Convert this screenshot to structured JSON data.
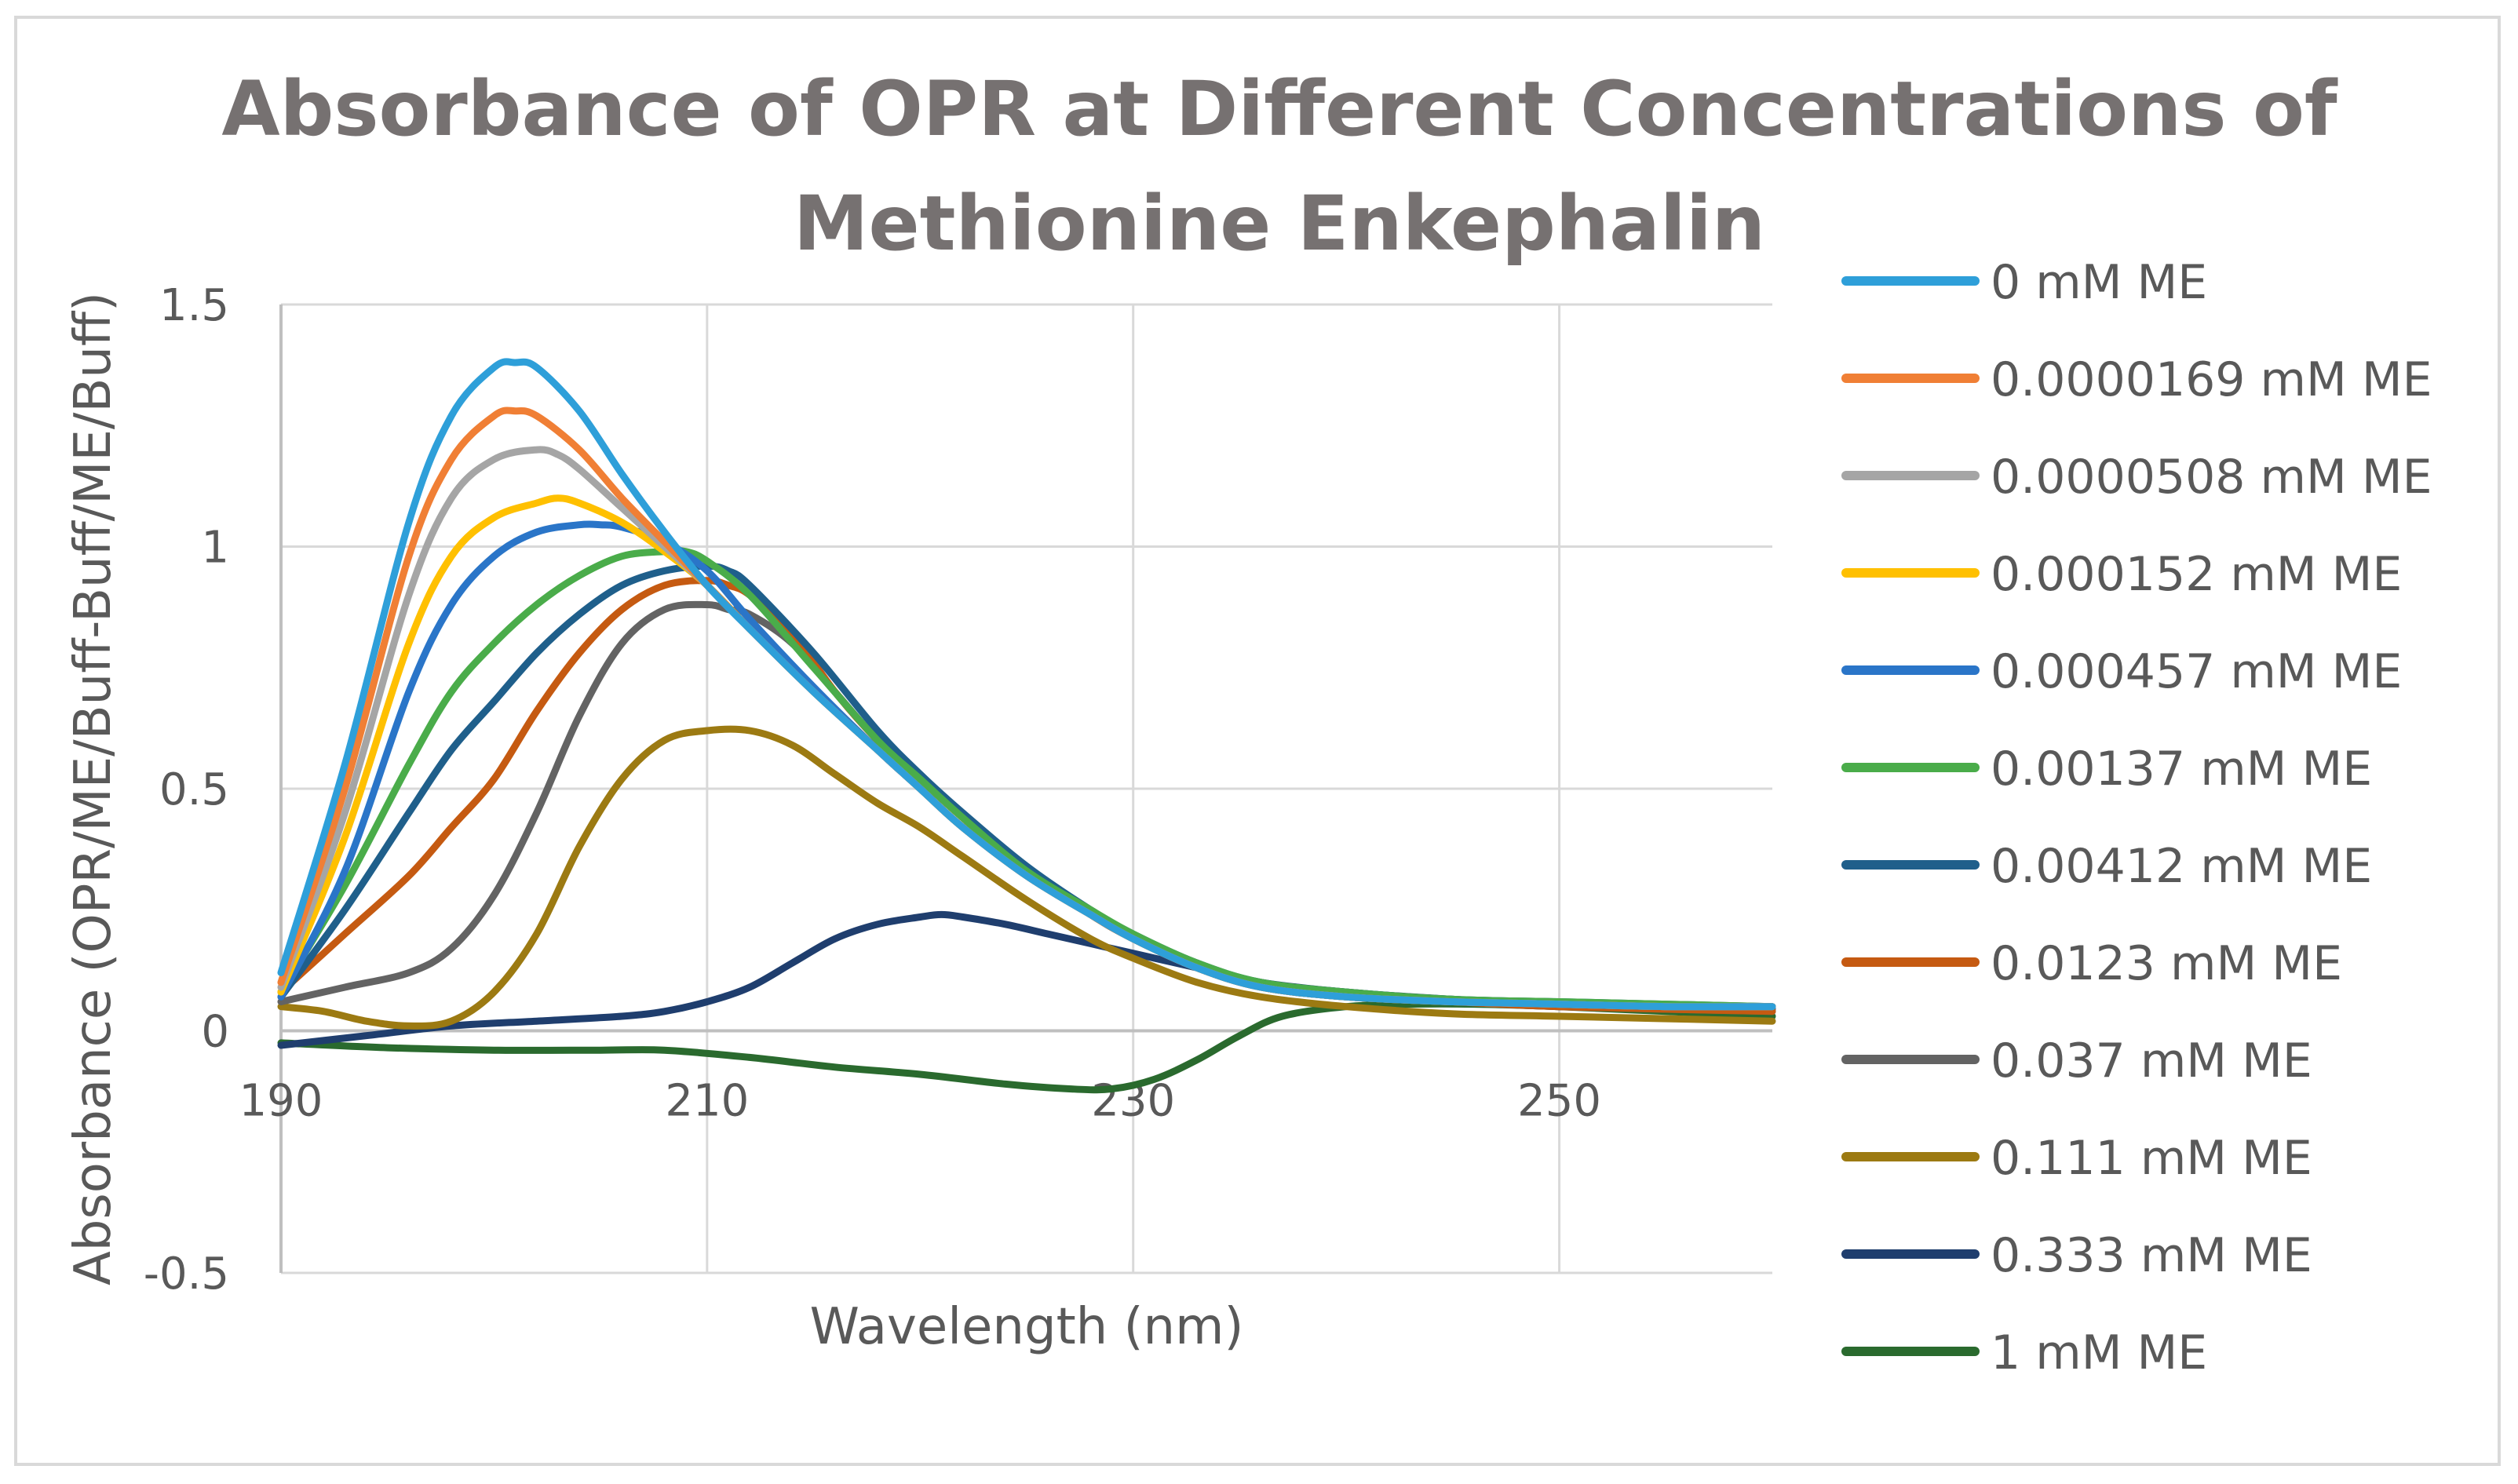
{
  "chart_data": {
    "type": "line",
    "title": "Absorbance of OPR at Different Concentrations of Methionine Enkephalin",
    "title_lines": [
      "Absorbance of OPR at Different Concentrations of",
      "Methionine Enkephalin"
    ],
    "xlabel": "Wavelength (nm)",
    "ylabel": "Absorbance (OPR/ME/Buff-Buff/ME/Buff)",
    "xlim": [
      190,
      260
    ],
    "ylim": [
      -0.5,
      1.5
    ],
    "xticks": [
      190,
      210,
      230,
      250
    ],
    "yticks": [
      -0.5,
      0,
      0.5,
      1,
      1.5
    ],
    "ytick_labels": [
      "-0.5",
      "0",
      "0.5",
      "1",
      "1.5"
    ],
    "grid": true,
    "legend_position": "right",
    "series": [
      {
        "name": "0 mM ME",
        "color": "#2e9fd9",
        "x": [
          190,
          193,
          196,
          198,
          200,
          201,
          202,
          204,
          206,
          208,
          210,
          212,
          215,
          218,
          220,
          222,
          225,
          228,
          230,
          233,
          236,
          240,
          245,
          250,
          255,
          260
        ],
        "y": [
          0.12,
          0.55,
          1.05,
          1.27,
          1.37,
          1.38,
          1.37,
          1.28,
          1.15,
          1.03,
          0.92,
          0.83,
          0.7,
          0.58,
          0.5,
          0.42,
          0.32,
          0.24,
          0.19,
          0.13,
          0.09,
          0.07,
          0.06,
          0.055,
          0.05,
          0.05
        ]
      },
      {
        "name": "0.0000169 mM ME",
        "color": "#f07f35",
        "x": [
          190,
          193,
          196,
          198,
          200,
          201,
          202,
          204,
          206,
          208,
          210,
          212,
          215,
          218,
          220,
          222,
          225,
          228,
          230,
          233,
          236,
          240,
          245,
          250,
          255,
          260
        ],
        "y": [
          0.1,
          0.5,
          0.98,
          1.18,
          1.27,
          1.28,
          1.27,
          1.2,
          1.1,
          1.01,
          0.92,
          0.83,
          0.7,
          0.58,
          0.5,
          0.42,
          0.32,
          0.24,
          0.19,
          0.13,
          0.09,
          0.07,
          0.06,
          0.055,
          0.05,
          0.05
        ]
      },
      {
        "name": "0.0000508 mM ME",
        "color": "#a5a5a5",
        "x": [
          190,
          193,
          196,
          198,
          200,
          202,
          203,
          204,
          206,
          208,
          210,
          212,
          215,
          218,
          220,
          222,
          225,
          228,
          230,
          233,
          236,
          240,
          245,
          250,
          255,
          260
        ],
        "y": [
          0.09,
          0.45,
          0.9,
          1.1,
          1.18,
          1.2,
          1.19,
          1.16,
          1.08,
          1.0,
          0.92,
          0.83,
          0.7,
          0.58,
          0.5,
          0.42,
          0.32,
          0.24,
          0.19,
          0.13,
          0.09,
          0.07,
          0.06,
          0.055,
          0.05,
          0.05
        ]
      },
      {
        "name": "0.000152 mM ME",
        "color": "#ffc000",
        "x": [
          190,
          193,
          196,
          198,
          200,
          202,
          203,
          204,
          206,
          208,
          210,
          212,
          215,
          218,
          220,
          222,
          225,
          228,
          230,
          233,
          236,
          240,
          245,
          250,
          255,
          260
        ],
        "y": [
          0.08,
          0.4,
          0.8,
          0.98,
          1.06,
          1.09,
          1.1,
          1.09,
          1.05,
          0.99,
          0.92,
          0.83,
          0.7,
          0.58,
          0.5,
          0.42,
          0.32,
          0.24,
          0.19,
          0.13,
          0.09,
          0.07,
          0.06,
          0.055,
          0.05,
          0.05
        ]
      },
      {
        "name": "0.000457 mM ME",
        "color": "#2a75c8",
        "x": [
          190,
          193,
          196,
          198,
          200,
          202,
          204,
          205,
          206,
          208,
          210,
          212,
          215,
          218,
          220,
          222,
          225,
          228,
          230,
          233,
          236,
          240,
          245,
          250,
          255,
          260
        ],
        "y": [
          0.07,
          0.33,
          0.7,
          0.88,
          0.98,
          1.03,
          1.045,
          1.045,
          1.04,
          1.01,
          0.95,
          0.85,
          0.71,
          0.58,
          0.5,
          0.42,
          0.32,
          0.24,
          0.19,
          0.13,
          0.09,
          0.07,
          0.06,
          0.055,
          0.05,
          0.05
        ]
      },
      {
        "name": "0.00137 mM ME",
        "color": "#4aac4a",
        "x": [
          190,
          193,
          196,
          198,
          200,
          202,
          204,
          206,
          208,
          209,
          210,
          212,
          215,
          218,
          220,
          222,
          225,
          228,
          230,
          233,
          236,
          240,
          245,
          250,
          255,
          260
        ],
        "y": [
          0.08,
          0.3,
          0.55,
          0.7,
          0.8,
          0.88,
          0.94,
          0.98,
          0.99,
          0.99,
          0.97,
          0.9,
          0.75,
          0.6,
          0.52,
          0.44,
          0.33,
          0.25,
          0.2,
          0.14,
          0.1,
          0.08,
          0.065,
          0.06,
          0.055,
          0.05
        ]
      },
      {
        "name": "0.00412 mM ME",
        "color": "#1f5f8b",
        "x": [
          190,
          193,
          196,
          198,
          200,
          202,
          204,
          206,
          208,
          210,
          211,
          212,
          215,
          218,
          220,
          222,
          225,
          228,
          230,
          233,
          236,
          240,
          245,
          250,
          255,
          260
        ],
        "y": [
          0.07,
          0.25,
          0.45,
          0.58,
          0.68,
          0.78,
          0.86,
          0.92,
          0.95,
          0.96,
          0.95,
          0.92,
          0.78,
          0.62,
          0.53,
          0.45,
          0.34,
          0.25,
          0.2,
          0.14,
          0.1,
          0.08,
          0.065,
          0.06,
          0.055,
          0.05
        ]
      },
      {
        "name": "0.0123 mM ME",
        "color": "#c55a11",
        "x": [
          190,
          193,
          196,
          198,
          200,
          202,
          204,
          206,
          208,
          210,
          211,
          212,
          214,
          216,
          218,
          220,
          222,
          225,
          228,
          230,
          233,
          236,
          240,
          245,
          250,
          260
        ],
        "y": [
          0.08,
          0.2,
          0.32,
          0.42,
          0.52,
          0.66,
          0.78,
          0.87,
          0.92,
          0.93,
          0.92,
          0.9,
          0.82,
          0.7,
          0.6,
          0.52,
          0.44,
          0.33,
          0.24,
          0.19,
          0.13,
          0.09,
          0.07,
          0.06,
          0.05,
          0.04
        ]
      },
      {
        "name": "0.037 mM ME",
        "color": "#636363",
        "x": [
          190,
          193,
          196,
          198,
          200,
          202,
          204,
          206,
          208,
          210,
          211,
          212,
          214,
          216,
          218,
          220,
          222,
          225,
          228,
          230,
          233,
          236,
          240,
          245,
          250,
          260
        ],
        "y": [
          0.06,
          0.09,
          0.12,
          0.17,
          0.28,
          0.45,
          0.65,
          0.8,
          0.87,
          0.88,
          0.87,
          0.86,
          0.8,
          0.7,
          0.6,
          0.52,
          0.44,
          0.33,
          0.24,
          0.19,
          0.13,
          0.09,
          0.07,
          0.06,
          0.05,
          0.04
        ]
      },
      {
        "name": "0.111 mM ME",
        "color": "#9c7a12",
        "x": [
          190,
          192,
          194,
          196,
          198,
          200,
          202,
          204,
          206,
          208,
          210,
          212,
          214,
          216,
          218,
          220,
          222,
          225,
          228,
          230,
          233,
          236,
          240,
          245,
          250,
          260
        ],
        "y": [
          0.05,
          0.04,
          0.02,
          0.01,
          0.02,
          0.08,
          0.2,
          0.38,
          0.52,
          0.6,
          0.62,
          0.62,
          0.59,
          0.53,
          0.47,
          0.42,
          0.36,
          0.27,
          0.19,
          0.15,
          0.1,
          0.07,
          0.05,
          0.035,
          0.03,
          0.02
        ]
      },
      {
        "name": "0.333 mM ME",
        "color": "#1f3e6e",
        "x": [
          190,
          194,
          198,
          202,
          206,
          208,
          210,
          212,
          214,
          216,
          218,
          220,
          221,
          222,
          224,
          226,
          228,
          230,
          233,
          236,
          240,
          245,
          250,
          255,
          260
        ],
        "y": [
          -0.03,
          -0.01,
          0.01,
          0.02,
          0.03,
          0.04,
          0.06,
          0.09,
          0.14,
          0.19,
          0.22,
          0.235,
          0.24,
          0.235,
          0.22,
          0.2,
          0.18,
          0.16,
          0.13,
          0.1,
          0.08,
          0.065,
          0.055,
          0.05,
          0.045
        ]
      },
      {
        "name": "1 mM ME",
        "color": "#2a6a2e",
        "x": [
          190,
          195,
          200,
          205,
          208,
          212,
          216,
          220,
          224,
          227,
          229,
          231,
          233,
          235,
          237,
          240,
          243,
          246,
          250,
          255,
          260
        ],
        "y": [
          -0.025,
          -0.035,
          -0.04,
          -0.04,
          -0.04,
          -0.055,
          -0.075,
          -0.09,
          -0.11,
          -0.12,
          -0.12,
          -0.1,
          -0.06,
          -0.01,
          0.03,
          0.05,
          0.055,
          0.055,
          0.05,
          0.04,
          0.03
        ]
      }
    ]
  }
}
